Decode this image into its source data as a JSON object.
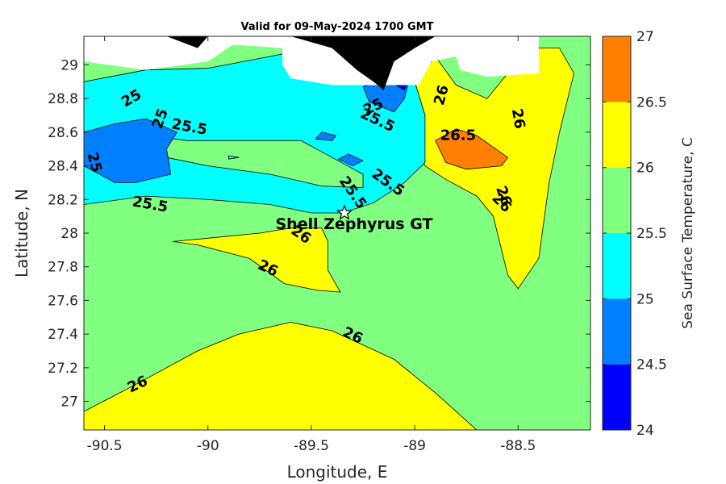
{
  "chart_data": {
    "type": "contour",
    "title": "Valid for 09-May-2024 1700 GMT",
    "xlabel": "Longitude, E",
    "ylabel": "Latitude, N",
    "xlim": [
      -90.6,
      -88.15
    ],
    "ylim": [
      26.83,
      29.17
    ],
    "xticks": [
      -90.5,
      -90,
      -89.5,
      -89,
      -88.5
    ],
    "xtick_labels": [
      "-90.5",
      "-90",
      "-89.5",
      "-89",
      "-88.5"
    ],
    "yticks": [
      27,
      27.2,
      27.4,
      27.6,
      27.8,
      28,
      28.2,
      28.4,
      28.6,
      28.8,
      29
    ],
    "ytick_labels": [
      "27",
      "27.2",
      "27.4",
      "27.6",
      "27.8",
      "28",
      "28.2",
      "28.4",
      "28.6",
      "28.8",
      "29"
    ],
    "colorbar": {
      "label": "Sea Surface Temperature, C",
      "levels": [
        24,
        24.5,
        25,
        25.5,
        26,
        26.5,
        27
      ],
      "tick_labels": [
        "24",
        "24.5",
        "25",
        "25.5",
        "26",
        "26.5",
        "27"
      ],
      "colors": [
        "#0000ff",
        "#0080ff",
        "#00ffff",
        "#80ff80",
        "#ffff00",
        "#ff8000"
      ]
    },
    "regions": [
      {
        "level": 25.5,
        "color": "#80ff80",
        "points": [
          [
            -90.6,
            26.83
          ],
          [
            -88.15,
            26.83
          ],
          [
            -88.15,
            29.17
          ],
          [
            -90.6,
            29.17
          ]
        ]
      },
      {
        "level": 26,
        "color": "#ffff00",
        "points": [
          [
            -90.6,
            26.94
          ],
          [
            -90.35,
            27.1
          ],
          [
            -90.05,
            27.3
          ],
          [
            -89.85,
            27.4
          ],
          [
            -89.6,
            27.47
          ],
          [
            -89.4,
            27.42
          ],
          [
            -89.1,
            27.25
          ],
          [
            -88.9,
            27.05
          ],
          [
            -88.7,
            26.83
          ],
          [
            -90.6,
            26.83
          ]
        ]
      },
      {
        "level": 26,
        "color": "#ffff00",
        "points": [
          [
            -90.17,
            27.95
          ],
          [
            -90.0,
            27.97
          ],
          [
            -89.75,
            28.0
          ],
          [
            -89.6,
            28.03
          ],
          [
            -89.45,
            28.03
          ],
          [
            -89.42,
            27.95
          ],
          [
            -89.42,
            27.78
          ],
          [
            -89.36,
            27.65
          ],
          [
            -89.47,
            27.66
          ],
          [
            -89.63,
            27.7
          ],
          [
            -89.8,
            27.85
          ],
          [
            -90.05,
            27.93
          ],
          [
            -90.17,
            27.95
          ]
        ]
      },
      {
        "level": 26,
        "color": "#ffff00",
        "points": [
          [
            -89.0,
            28.9
          ],
          [
            -88.95,
            28.7
          ],
          [
            -89.0,
            28.55
          ],
          [
            -88.95,
            28.4
          ],
          [
            -88.85,
            28.32
          ],
          [
            -88.7,
            28.22
          ],
          [
            -88.62,
            28.1
          ],
          [
            -88.55,
            27.75
          ],
          [
            -88.5,
            27.67
          ],
          [
            -88.4,
            27.85
          ],
          [
            -88.35,
            28.3
          ],
          [
            -88.3,
            28.6
          ],
          [
            -88.23,
            28.95
          ],
          [
            -88.3,
            29.1
          ],
          [
            -88.4,
            29.1
          ],
          [
            -88.55,
            28.95
          ],
          [
            -88.65,
            28.8
          ],
          [
            -88.8,
            28.88
          ],
          [
            -88.9,
            29.05
          ],
          [
            -89.0,
            28.9
          ]
        ]
      },
      {
        "level": 26.5,
        "color": "#ff8000",
        "points": [
          [
            -88.9,
            28.55
          ],
          [
            -88.8,
            28.62
          ],
          [
            -88.7,
            28.58
          ],
          [
            -88.55,
            28.45
          ],
          [
            -88.58,
            28.4
          ],
          [
            -88.75,
            28.38
          ],
          [
            -88.85,
            28.42
          ],
          [
            -88.9,
            28.55
          ]
        ]
      },
      {
        "level": 25,
        "color": "#00ffff",
        "points": [
          [
            -90.6,
            28.17
          ],
          [
            -90.3,
            28.22
          ],
          [
            -90.0,
            28.2
          ],
          [
            -89.7,
            28.17
          ],
          [
            -89.5,
            28.12
          ],
          [
            -89.35,
            28.12
          ],
          [
            -89.2,
            28.18
          ],
          [
            -89.05,
            28.3
          ],
          [
            -88.95,
            28.42
          ],
          [
            -88.95,
            28.55
          ],
          [
            -88.95,
            28.7
          ],
          [
            -89.0,
            28.9
          ],
          [
            -89.2,
            29.1
          ],
          [
            -89.5,
            29.1
          ],
          [
            -89.7,
            29.05
          ],
          [
            -90.0,
            28.98
          ],
          [
            -90.3,
            28.97
          ],
          [
            -90.6,
            28.9
          ]
        ]
      },
      {
        "level": 25.5,
        "color": "#80ff80",
        "points": [
          [
            -90.4,
            28.6
          ],
          [
            -90.1,
            28.55
          ],
          [
            -89.8,
            28.55
          ],
          [
            -89.55,
            28.55
          ],
          [
            -89.4,
            28.45
          ],
          [
            -89.25,
            28.35
          ],
          [
            -89.25,
            28.27
          ],
          [
            -89.45,
            28.28
          ],
          [
            -89.7,
            28.35
          ],
          [
            -90.0,
            28.4
          ],
          [
            -90.2,
            28.45
          ],
          [
            -90.4,
            28.6
          ]
        ]
      },
      {
        "level": 24.5,
        "color": "#0080ff",
        "points": [
          [
            -90.6,
            28.6
          ],
          [
            -90.45,
            28.65
          ],
          [
            -90.3,
            28.68
          ],
          [
            -90.15,
            28.6
          ],
          [
            -90.2,
            28.5
          ],
          [
            -90.18,
            28.35
          ],
          [
            -90.35,
            28.3
          ],
          [
            -90.45,
            28.3
          ],
          [
            -90.6,
            28.4
          ]
        ]
      },
      {
        "level": 24.5,
        "color": "#0080ff",
        "points": [
          [
            -89.25,
            28.87
          ],
          [
            -89.1,
            28.95
          ],
          [
            -89.02,
            28.95
          ],
          [
            -89.05,
            28.8
          ],
          [
            -89.1,
            28.72
          ],
          [
            -89.22,
            28.78
          ]
        ]
      },
      {
        "level": 24.5,
        "color": "#0080ff",
        "points": [
          [
            -89.45,
            28.6
          ],
          [
            -89.38,
            28.58
          ],
          [
            -89.4,
            28.55
          ],
          [
            -89.48,
            28.56
          ]
        ]
      },
      {
        "level": 24.5,
        "color": "#0080ff",
        "points": [
          [
            -89.32,
            28.47
          ],
          [
            -89.25,
            28.43
          ],
          [
            -89.3,
            28.4
          ],
          [
            -89.37,
            28.44
          ]
        ]
      },
      {
        "level": 24,
        "color": "#0000ff",
        "points": [
          [
            -89.12,
            28.9
          ],
          [
            -89.05,
            28.85
          ],
          [
            -89.03,
            28.92
          ]
        ]
      },
      {
        "level": 25,
        "color": "#00ffff",
        "points": [
          [
            -89.9,
            28.46
          ],
          [
            -89.85,
            28.45
          ],
          [
            -89.9,
            28.44
          ]
        ]
      }
    ],
    "land_mask": [
      {
        "points": [
          [
            -90.6,
            29.17
          ],
          [
            -88.4,
            29.17
          ],
          [
            -88.4,
            28.95
          ],
          [
            -88.65,
            28.93
          ],
          [
            -88.78,
            28.97
          ],
          [
            -88.8,
            29.05
          ],
          [
            -88.92,
            29.02
          ],
          [
            -88.98,
            28.88
          ],
          [
            -89.4,
            28.88
          ],
          [
            -89.6,
            28.92
          ],
          [
            -89.64,
            29.0
          ],
          [
            -89.64,
            29.1
          ],
          [
            -89.88,
            29.12
          ],
          [
            -90.0,
            29.02
          ],
          [
            -90.3,
            28.97
          ],
          [
            -90.6,
            29.02
          ]
        ]
      }
    ],
    "land_black": [
      {
        "points": [
          [
            -89.6,
            29.17
          ],
          [
            -89.4,
            29.1
          ],
          [
            -89.28,
            28.97
          ],
          [
            -89.2,
            28.9
          ],
          [
            -89.15,
            28.85
          ],
          [
            -89.1,
            29.02
          ],
          [
            -89.0,
            29.1
          ],
          [
            -88.9,
            29.17
          ]
        ]
      },
      {
        "points": [
          [
            -90.2,
            29.17
          ],
          [
            -90.05,
            29.1
          ],
          [
            -90.0,
            29.17
          ]
        ]
      }
    ],
    "contour_labels": [
      {
        "text": "25",
        "lon": -90.37,
        "lat": 28.8,
        "angle": -30
      },
      {
        "text": "25",
        "lon": -90.23,
        "lat": 28.68,
        "angle": -70
      },
      {
        "text": "25.5",
        "lon": -90.09,
        "lat": 28.63,
        "angle": 10
      },
      {
        "text": "25",
        "lon": -90.55,
        "lat": 28.42,
        "angle": 75
      },
      {
        "text": "25.5",
        "lon": -90.28,
        "lat": 28.17,
        "angle": 10
      },
      {
        "text": "25",
        "lon": -89.2,
        "lat": 28.75,
        "angle": -25
      },
      {
        "text": "25.5",
        "lon": -89.18,
        "lat": 28.67,
        "angle": 25
      },
      {
        "text": "25.5",
        "lon": -89.13,
        "lat": 28.3,
        "angle": 35
      },
      {
        "text": "25.5",
        "lon": -89.3,
        "lat": 28.24,
        "angle": 55
      },
      {
        "text": "26",
        "lon": -89.55,
        "lat": 27.99,
        "angle": 35
      },
      {
        "text": "26",
        "lon": -89.71,
        "lat": 27.79,
        "angle": 25
      },
      {
        "text": "26",
        "lon": -88.87,
        "lat": 28.82,
        "angle": -75
      },
      {
        "text": "26",
        "lon": -88.5,
        "lat": 28.68,
        "angle": 80
      },
      {
        "text": "26",
        "lon": -88.58,
        "lat": 28.18,
        "angle": 45
      },
      {
        "text": "26",
        "lon": -88.57,
        "lat": 28.22,
        "angle": 70
      },
      {
        "text": "26",
        "lon": -89.3,
        "lat": 27.39,
        "angle": 25
      },
      {
        "text": "26",
        "lon": -90.34,
        "lat": 27.1,
        "angle": -25
      },
      {
        "text": "26.5",
        "lon": -88.79,
        "lat": 28.58,
        "angle": 0
      }
    ],
    "annotations": [
      {
        "text": "Shell Zephyrus GT",
        "lon": -89.34,
        "lat": 28.12
      }
    ]
  }
}
